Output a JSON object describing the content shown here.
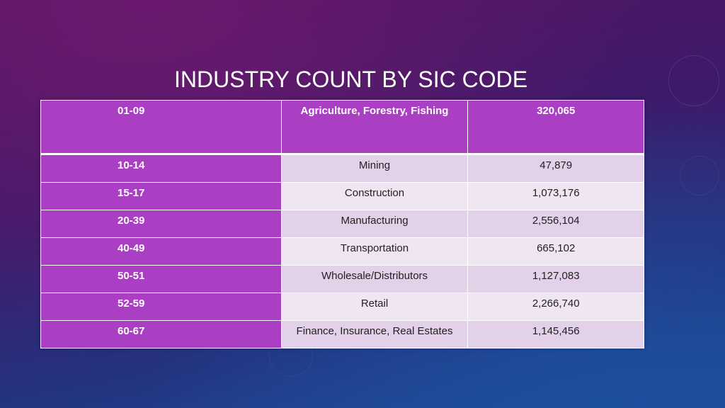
{
  "slide": {
    "title": "INDUSTRY COUNT BY SIC CODE"
  },
  "table": {
    "header": {
      "code": "01-09",
      "industry": "Agriculture, Forestry, Fishing",
      "count": "320,065"
    },
    "rows": [
      {
        "code": "10-14",
        "industry": "Mining",
        "count": "47,879"
      },
      {
        "code": "15-17",
        "industry": "Construction",
        "count": "1,073,176"
      },
      {
        "code": "20-39",
        "industry": "Manufacturing",
        "count": "2,556,104"
      },
      {
        "code": "40-49",
        "industry": "Transportation",
        "count": "665,102"
      },
      {
        "code": "50-51",
        "industry": "Wholesale/Distributors",
        "count": "1,127,083"
      },
      {
        "code": "52-59",
        "industry": "Retail",
        "count": "2,266,740"
      },
      {
        "code": "60-67",
        "industry": "Finance, Insurance, Real Estates",
        "count": "1,145,456"
      }
    ]
  },
  "colors": {
    "header_purple": "#ab3fc4",
    "row_light_a": "#e3d0e9",
    "row_light_b": "#efe6f2"
  }
}
